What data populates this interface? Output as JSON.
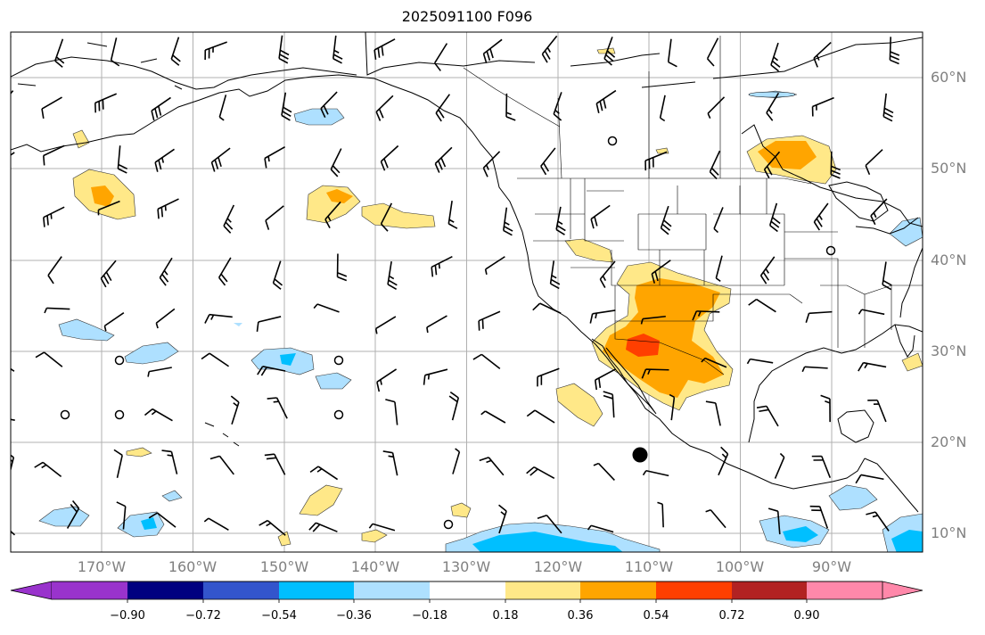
{
  "title": "2025091100 F096",
  "longitude_labels": [
    "170°W",
    "160°W",
    "150°W",
    "140°W",
    "130°W",
    "120°W",
    "110°W",
    "100°W",
    "90°W"
  ],
  "latitude_labels": [
    "60°N",
    "50°N",
    "40°N",
    "30°N",
    "20°N",
    "10°N"
  ],
  "colorbar": {
    "tick_labels": [
      "−0.90",
      "−0.72",
      "−0.54",
      "−0.36",
      "−0.18",
      "0.18",
      "0.36",
      "0.54",
      "0.72",
      "0.90"
    ],
    "colors": [
      "#9933cc",
      "#000080",
      "#3355cc",
      "#00bfff",
      "#aee0ff",
      "#ffffff",
      "#ffe888",
      "#ffa500",
      "#ff3f00",
      "#b22222",
      "#ff88aa"
    ]
  },
  "map_styles": {
    "grid_color": "#b0b0b0",
    "coast_color": "#000000",
    "shading_colors": {
      "weak_negative": "#aee0ff",
      "negative": "#00bfff",
      "weak_positive": "#ffe888",
      "positive": "#ffa500",
      "strong_positive": "#ff3f00"
    }
  }
}
